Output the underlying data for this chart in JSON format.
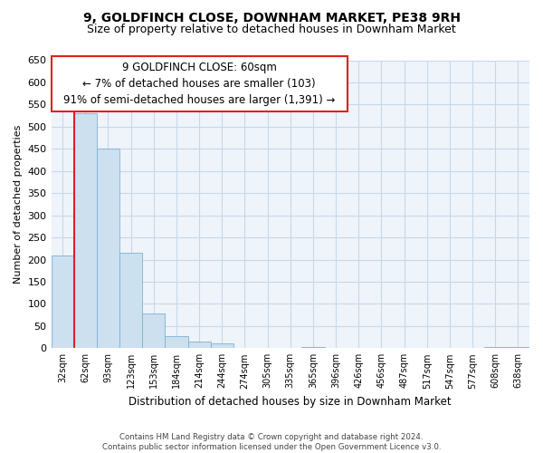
{
  "title": "9, GOLDFINCH CLOSE, DOWNHAM MARKET, PE38 9RH",
  "subtitle": "Size of property relative to detached houses in Downham Market",
  "xlabel": "Distribution of detached houses by size in Downham Market",
  "ylabel": "Number of detached properties",
  "bar_labels": [
    "32sqm",
    "62sqm",
    "93sqm",
    "123sqm",
    "153sqm",
    "184sqm",
    "214sqm",
    "244sqm",
    "274sqm",
    "305sqm",
    "335sqm",
    "365sqm",
    "396sqm",
    "426sqm",
    "456sqm",
    "487sqm",
    "517sqm",
    "547sqm",
    "577sqm",
    "608sqm",
    "638sqm"
  ],
  "bar_values": [
    210,
    530,
    450,
    215,
    78,
    28,
    15,
    10,
    0,
    0,
    0,
    3,
    0,
    0,
    0,
    1,
    0,
    0,
    0,
    2,
    2
  ],
  "bar_color": "#cce0f0",
  "bar_edge_color": "#7fb0d0",
  "highlight_color": "#dd2222",
  "ylim": [
    0,
    650
  ],
  "yticks": [
    0,
    50,
    100,
    150,
    200,
    250,
    300,
    350,
    400,
    450,
    500,
    550,
    600,
    650
  ],
  "annotation_line1": "9 GOLDFINCH CLOSE: 60sqm",
  "annotation_line2": "← 7% of detached houses are smaller (103)",
  "annotation_line3": "91% of semi-detached houses are larger (1,391) →",
  "footer_text": "Contains HM Land Registry data © Crown copyright and database right 2024.\nContains public sector information licensed under the Open Government Licence v3.0.",
  "grid_color": "#c8d8e8",
  "background_color": "#ffffff",
  "plot_bg_color": "#eef4fa",
  "title_fontsize": 10,
  "subtitle_fontsize": 9,
  "redline_x": 0.575
}
